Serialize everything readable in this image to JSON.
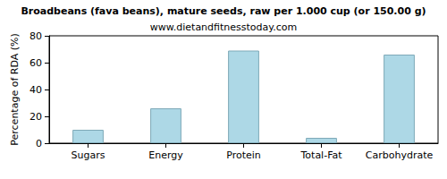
{
  "chart_data": {
    "type": "bar",
    "title": "Broadbeans (fava beans), mature seeds, raw per 1.000 cup (or 150.00 g)",
    "subtitle": "www.dietandfitnesstoday.com",
    "y_label": "Percentage of RDA (%)",
    "categories": [
      "Sugars",
      "Energy",
      "Protein",
      "Total-Fat",
      "Carbohydrate"
    ],
    "values": [
      10,
      26,
      69,
      4,
      66
    ],
    "color": "#add8e6",
    "ylim": [
      0,
      80
    ],
    "yticks": [
      0,
      20,
      40,
      60,
      80
    ],
    "grid": false
  }
}
